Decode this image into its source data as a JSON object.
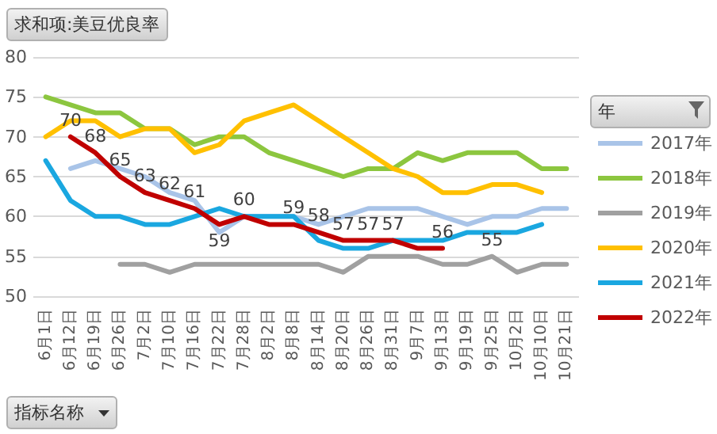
{
  "chart_data": {
    "type": "line",
    "title": "求和项:美豆优良率",
    "legend_title": "年",
    "annotations": [
      "指标名称"
    ],
    "categories": [
      "6月1日",
      "6月12日",
      "6月19日",
      "6月26日",
      "7月2日",
      "7月10日",
      "7月16日",
      "7月22日",
      "7月28日",
      "8月2日",
      "8月8日",
      "8月14日",
      "8月20日",
      "8月26日",
      "8月31日",
      "9月7日",
      "9月13日",
      "9月19日",
      "9月25日",
      "10月2日",
      "10月10日",
      "10月21日"
    ],
    "series": [
      {
        "name": "2017年",
        "color": "#a9c4e8",
        "values": [
          null,
          66,
          67,
          66,
          65,
          63,
          62,
          58,
          60,
          60,
          60,
          59,
          60,
          61,
          61,
          61,
          60,
          59,
          60,
          60,
          61,
          61
        ]
      },
      {
        "name": "2018年",
        "color": "#8cc63f",
        "values": [
          75,
          74,
          73,
          73,
          71,
          71,
          69,
          70,
          70,
          68,
          67,
          66,
          65,
          66,
          66,
          68,
          67,
          68,
          68,
          68,
          66,
          66
        ]
      },
      {
        "name": "2019年",
        "color": "#a0a0a0",
        "values": [
          null,
          null,
          null,
          54,
          54,
          53,
          54,
          54,
          54,
          54,
          54,
          54,
          53,
          55,
          55,
          55,
          54,
          54,
          55,
          53,
          54,
          54
        ],
        "value_labels": [
          null,
          null,
          null,
          null,
          null,
          null,
          null,
          null,
          null,
          null,
          null,
          null,
          null,
          null,
          null,
          null,
          null,
          null,
          "55",
          null,
          null,
          null
        ]
      },
      {
        "name": "2020年",
        "color": "#ffc000",
        "values": [
          70,
          72,
          72,
          70,
          71,
          71,
          68,
          69,
          72,
          73,
          74,
          72,
          70,
          68,
          66,
          65,
          63,
          63,
          64,
          64,
          63,
          null
        ]
      },
      {
        "name": "2021年",
        "color": "#1aa7e0",
        "values": [
          67,
          62,
          60,
          60,
          59,
          59,
          60,
          61,
          60,
          60,
          60,
          57,
          56,
          56,
          57,
          57,
          57,
          58,
          58,
          58,
          59,
          null
        ]
      },
      {
        "name": "2022年",
        "color": "#c00000",
        "values": [
          null,
          70,
          68,
          65,
          63,
          62,
          61,
          59,
          60,
          59,
          59,
          58,
          57,
          57,
          57,
          56,
          56,
          null,
          null,
          null,
          null,
          null
        ],
        "value_labels": [
          null,
          "70",
          "68",
          "65",
          "63",
          "62",
          "61",
          "59",
          "60",
          null,
          "59",
          "58",
          "57",
          "57",
          "57",
          null,
          "56",
          null,
          null,
          null,
          null,
          null
        ]
      }
    ],
    "ylim": [
      50,
      80
    ],
    "yticks": [
      50,
      55,
      60,
      65,
      70,
      75,
      80
    ],
    "grid": "y",
    "legend": "right",
    "marker": "none",
    "line_style": "solid"
  }
}
